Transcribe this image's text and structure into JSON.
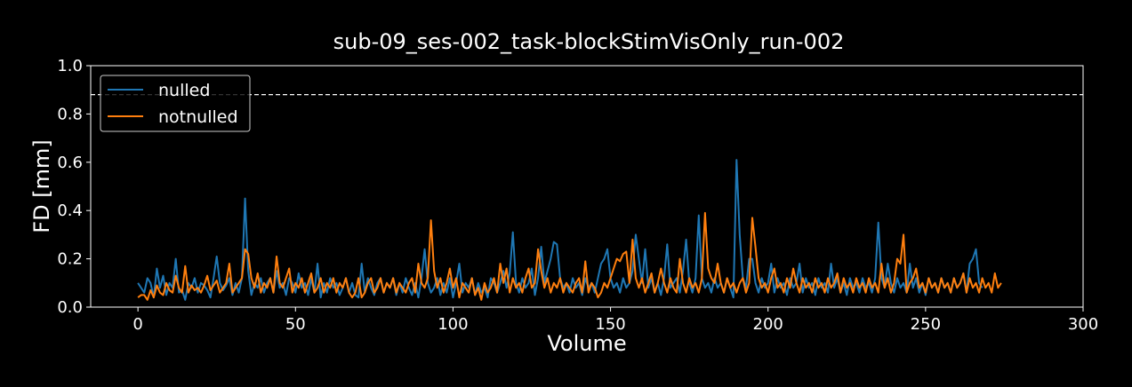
{
  "chart_data": {
    "type": "line",
    "title": "sub-09_ses-002_task-blockStimVisOnly_run-002",
    "xlabel": "Volume",
    "ylabel": "FD [mm]",
    "xlim": [
      -15,
      300
    ],
    "ylim": [
      0.0,
      1.0
    ],
    "xticks": [
      0,
      50,
      100,
      150,
      200,
      250,
      300
    ],
    "yticks": [
      0.0,
      0.2,
      0.4,
      0.6,
      0.8,
      1.0
    ],
    "xtick_labels": [
      "0",
      "50",
      "100",
      "150",
      "200",
      "250",
      "300"
    ],
    "ytick_labels": [
      "0.0",
      "0.2",
      "0.4",
      "0.6",
      "0.8",
      "1.0"
    ],
    "threshold": 0.88,
    "legend": {
      "placement": "upper-left"
    },
    "grid": false,
    "series": [
      {
        "name": "nulled",
        "color": "#1f77b4",
        "values": [
          0.1,
          0.08,
          0.06,
          0.12,
          0.1,
          0.04,
          0.16,
          0.08,
          0.13,
          0.05,
          0.1,
          0.08,
          0.2,
          0.06,
          0.07,
          0.03,
          0.1,
          0.08,
          0.12,
          0.06,
          0.1,
          0.09,
          0.07,
          0.04,
          0.12,
          0.21,
          0.1,
          0.07,
          0.09,
          0.12,
          0.05,
          0.1,
          0.06,
          0.12,
          0.45,
          0.15,
          0.05,
          0.1,
          0.08,
          0.12,
          0.06,
          0.1,
          0.12,
          0.06,
          0.15,
          0.08,
          0.1,
          0.05,
          0.12,
          0.1,
          0.06,
          0.14,
          0.08,
          0.1,
          0.05,
          0.12,
          0.06,
          0.18,
          0.04,
          0.1,
          0.06,
          0.12,
          0.08,
          0.1,
          0.05,
          0.08,
          0.12,
          0.06,
          0.1,
          0.05,
          0.04,
          0.18,
          0.06,
          0.12,
          0.08,
          0.05,
          0.1,
          0.12,
          0.06,
          0.1,
          0.08,
          0.12,
          0.05,
          0.1,
          0.06,
          0.12,
          0.08,
          0.05,
          0.1,
          0.04,
          0.12,
          0.24,
          0.1,
          0.06,
          0.08,
          0.12,
          0.05,
          0.1,
          0.06,
          0.12,
          0.04,
          0.1,
          0.18,
          0.06,
          0.1,
          0.08,
          0.12,
          0.05,
          0.1,
          0.06,
          0.08,
          0.04,
          0.12,
          0.1,
          0.06,
          0.1,
          0.15,
          0.08,
          0.14,
          0.31,
          0.1,
          0.06,
          0.12,
          0.08,
          0.1,
          0.16,
          0.05,
          0.12,
          0.25,
          0.1,
          0.15,
          0.2,
          0.27,
          0.26,
          0.12,
          0.08,
          0.1,
          0.06,
          0.12,
          0.08,
          0.1,
          0.05,
          0.12,
          0.08,
          0.1,
          0.06,
          0.12,
          0.18,
          0.2,
          0.24,
          0.12,
          0.08,
          0.1,
          0.06,
          0.12,
          0.08,
          0.1,
          0.15,
          0.3,
          0.2,
          0.1,
          0.24,
          0.08,
          0.12,
          0.06,
          0.1,
          0.05,
          0.12,
          0.26,
          0.08,
          0.1,
          0.12,
          0.06,
          0.15,
          0.28,
          0.1,
          0.06,
          0.12,
          0.38,
          0.12,
          0.08,
          0.1,
          0.06,
          0.12,
          0.08,
          0.1,
          0.06,
          0.12,
          0.08,
          0.04,
          0.61,
          0.3,
          0.12,
          0.08,
          0.2,
          0.2,
          0.1,
          0.06,
          0.12,
          0.08,
          0.1,
          0.18,
          0.06,
          0.12,
          0.08,
          0.1,
          0.05,
          0.12,
          0.08,
          0.1,
          0.18,
          0.06,
          0.12,
          0.08,
          0.1,
          0.05,
          0.12,
          0.08,
          0.1,
          0.06,
          0.18,
          0.08,
          0.12,
          0.06,
          0.1,
          0.05,
          0.12,
          0.08,
          0.1,
          0.06,
          0.12,
          0.08,
          0.1,
          0.06,
          0.12,
          0.35,
          0.12,
          0.08,
          0.18,
          0.1,
          0.06,
          0.12,
          0.08,
          0.1,
          0.06,
          0.18,
          0.08,
          0.12,
          0.06,
          0.1,
          0.05,
          0.12,
          0.08,
          0.1,
          0.06,
          0.12,
          0.08,
          0.1,
          0.06,
          0.12,
          0.08,
          0.1,
          0.14,
          0.06,
          0.18,
          0.2,
          0.24,
          0.1,
          0.08
        ],
        "start_x": 0
      },
      {
        "name": "notnulled",
        "color": "#ff7f0e",
        "values": [
          0.04,
          0.05,
          0.05,
          0.03,
          0.07,
          0.04,
          0.09,
          0.06,
          0.05,
          0.1,
          0.07,
          0.06,
          0.13,
          0.08,
          0.06,
          0.17,
          0.06,
          0.09,
          0.07,
          0.08,
          0.06,
          0.09,
          0.13,
          0.07,
          0.09,
          0.11,
          0.06,
          0.08,
          0.1,
          0.18,
          0.06,
          0.08,
          0.1,
          0.12,
          0.24,
          0.22,
          0.12,
          0.08,
          0.14,
          0.06,
          0.1,
          0.08,
          0.12,
          0.06,
          0.21,
          0.1,
          0.08,
          0.12,
          0.16,
          0.06,
          0.1,
          0.08,
          0.12,
          0.06,
          0.1,
          0.14,
          0.06,
          0.08,
          0.12,
          0.06,
          0.1,
          0.08,
          0.12,
          0.06,
          0.1,
          0.08,
          0.12,
          0.06,
          0.04,
          0.06,
          0.12,
          0.04,
          0.06,
          0.1,
          0.12,
          0.06,
          0.08,
          0.12,
          0.06,
          0.1,
          0.08,
          0.12,
          0.06,
          0.1,
          0.08,
          0.06,
          0.1,
          0.12,
          0.06,
          0.18,
          0.1,
          0.08,
          0.12,
          0.36,
          0.15,
          0.08,
          0.12,
          0.06,
          0.1,
          0.16,
          0.08,
          0.12,
          0.04,
          0.1,
          0.08,
          0.06,
          0.12,
          0.05,
          0.08,
          0.03,
          0.1,
          0.06,
          0.08,
          0.12,
          0.06,
          0.18,
          0.1,
          0.16,
          0.06,
          0.12,
          0.08,
          0.1,
          0.06,
          0.12,
          0.16,
          0.08,
          0.1,
          0.24,
          0.15,
          0.08,
          0.12,
          0.06,
          0.1,
          0.08,
          0.12,
          0.06,
          0.1,
          0.08,
          0.06,
          0.1,
          0.12,
          0.06,
          0.19,
          0.06,
          0.1,
          0.08,
          0.04,
          0.06,
          0.1,
          0.08,
          0.12,
          0.16,
          0.2,
          0.19,
          0.22,
          0.23,
          0.1,
          0.28,
          0.12,
          0.08,
          0.12,
          0.06,
          0.1,
          0.14,
          0.06,
          0.1,
          0.16,
          0.1,
          0.06,
          0.12,
          0.08,
          0.06,
          0.2,
          0.1,
          0.06,
          0.12,
          0.08,
          0.1,
          0.06,
          0.12,
          0.39,
          0.16,
          0.12,
          0.1,
          0.18,
          0.1,
          0.06,
          0.12,
          0.08,
          0.1,
          0.06,
          0.1,
          0.12,
          0.06,
          0.1,
          0.37,
          0.25,
          0.12,
          0.08,
          0.1,
          0.06,
          0.12,
          0.16,
          0.08,
          0.1,
          0.06,
          0.12,
          0.08,
          0.16,
          0.1,
          0.06,
          0.12,
          0.08,
          0.1,
          0.06,
          0.12,
          0.08,
          0.1,
          0.06,
          0.12,
          0.08,
          0.1,
          0.14,
          0.06,
          0.12,
          0.08,
          0.1,
          0.06,
          0.12,
          0.08,
          0.1,
          0.06,
          0.12,
          0.08,
          0.1,
          0.06,
          0.18,
          0.08,
          0.12,
          0.06,
          0.1,
          0.2,
          0.18,
          0.3,
          0.06,
          0.1,
          0.12,
          0.16,
          0.08,
          0.1,
          0.06,
          0.12,
          0.08,
          0.1,
          0.06,
          0.12,
          0.08,
          0.1,
          0.06,
          0.12,
          0.08,
          0.1,
          0.14,
          0.06,
          0.12,
          0.08,
          0.1,
          0.06,
          0.12,
          0.08,
          0.1,
          0.06,
          0.14,
          0.08,
          0.1
        ],
        "start_x": 0
      }
    ]
  }
}
